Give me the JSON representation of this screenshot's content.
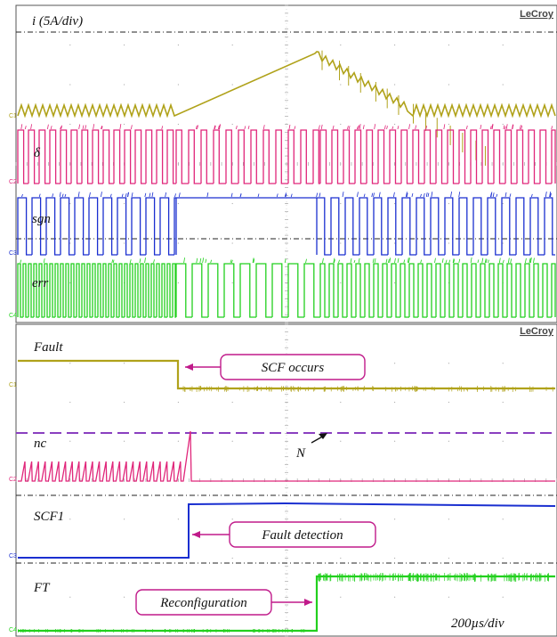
{
  "chart_data": [
    {
      "type": "line",
      "brand": "LeCroy",
      "timebase": "",
      "channels": [
        {
          "id": "C1",
          "label": "i (5A/div)",
          "color": "#b0a21a",
          "kind": "current"
        },
        {
          "id": "C2",
          "label": "δ",
          "color": "#e0267a",
          "kind": "pwm"
        },
        {
          "id": "C3",
          "label": "sgn",
          "color": "#1a2fd0",
          "kind": "pwm"
        },
        {
          "id": "C4",
          "label": "err",
          "color": "#22d01e",
          "kind": "pwm"
        }
      ]
    },
    {
      "type": "line",
      "brand": "LeCroy",
      "timebase": "200µs/div",
      "channels": [
        {
          "id": "C1",
          "label": "Fault",
          "color": "#b0a21a"
        },
        {
          "id": "C2",
          "label": "nc",
          "color": "#e0267a"
        },
        {
          "id": "C3",
          "label": "SCF1",
          "color": "#1a2fd0"
        },
        {
          "id": "C4",
          "label": "FT",
          "color": "#22d01e"
        }
      ],
      "threshold_label": "N",
      "threshold_color": "#8a3fc0",
      "annotations": [
        {
          "text": "SCF occurs"
        },
        {
          "text": "Fault detection"
        },
        {
          "text": "Reconfiguration"
        }
      ],
      "annotation_color": "#c01a8a"
    }
  ]
}
